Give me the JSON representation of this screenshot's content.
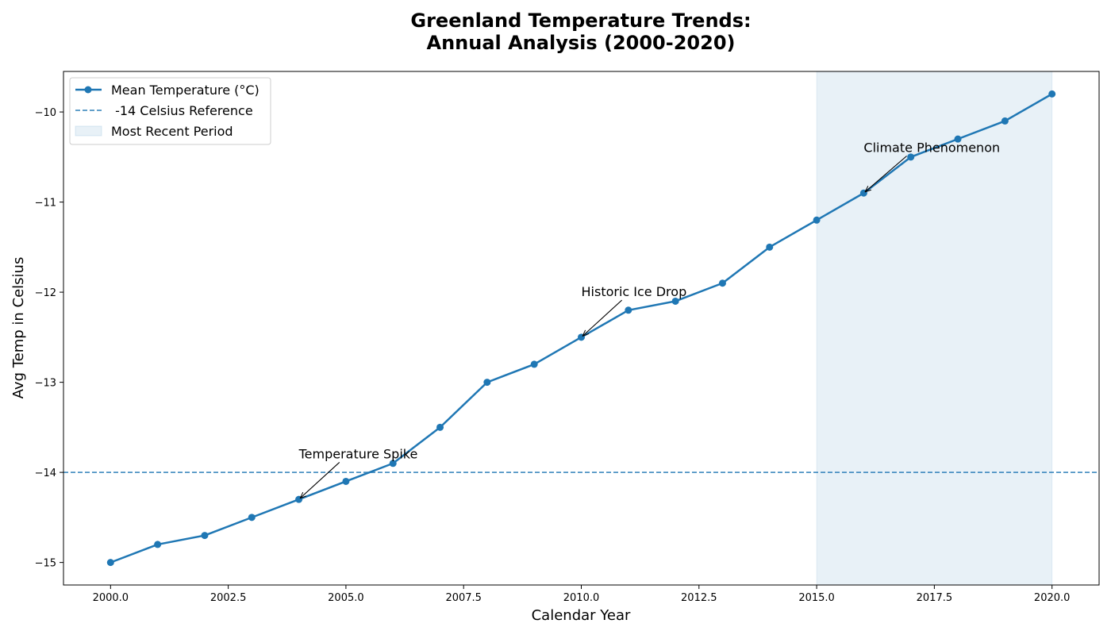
{
  "chart_data": {
    "type": "line",
    "title_line1": "Greenland Temperature Trends:",
    "title_line2": "Annual Analysis (2000-2020)",
    "xlabel": "Calendar Year",
    "ylabel": "Avg Temp in Celsius",
    "xlim": [
      1999.0,
      2021.0
    ],
    "ylim": [
      -15.25,
      -9.55
    ],
    "x_ticks": [
      2000.0,
      2002.5,
      2005.0,
      2007.5,
      2010.0,
      2012.5,
      2015.0,
      2017.5,
      2020.0
    ],
    "x_tick_labels": [
      "2000.0",
      "2002.5",
      "2005.0",
      "2007.5",
      "2010.0",
      "2012.5",
      "2015.0",
      "2017.5",
      "2020.0"
    ],
    "y_ticks": [
      -15,
      -14,
      -13,
      -12,
      -11,
      -10
    ],
    "y_tick_labels": [
      "−15",
      "−14",
      "−13",
      "−12",
      "−11",
      "−10"
    ],
    "grid": false,
    "series": [
      {
        "name": "Mean Temperature (°C)",
        "color": "#1f77b4",
        "x": [
          2000,
          2001,
          2002,
          2003,
          2004,
          2005,
          2006,
          2007,
          2008,
          2009,
          2010,
          2011,
          2012,
          2013,
          2014,
          2015,
          2016,
          2017,
          2018,
          2019,
          2020
        ],
        "values": [
          -15.0,
          -14.8,
          -14.7,
          -14.5,
          -14.3,
          -14.1,
          -13.9,
          -13.5,
          -13.0,
          -12.8,
          -12.5,
          -12.2,
          -12.1,
          -11.9,
          -11.5,
          -11.2,
          -10.9,
          -10.5,
          -10.3,
          -10.1,
          -9.8
        ]
      }
    ],
    "reference_line": {
      "name": " -14 Celsius Reference",
      "y": -14,
      "color": "#1f77b4"
    },
    "shaded_region": {
      "name": "Most Recent Period",
      "x_start": 2015,
      "x_end": 2020,
      "color": "#1f77b4"
    },
    "annotations": [
      {
        "text": "Temperature Spike",
        "point_x": 2004,
        "point_y": -14.3,
        "text_x": 2004,
        "text_y": -13.8
      },
      {
        "text": "Historic Ice Drop",
        "point_x": 2010,
        "point_y": -12.5,
        "text_x": 2010,
        "text_y": -12.0
      },
      {
        "text": "Climate Phenomenon",
        "point_x": 2016,
        "point_y": -10.9,
        "text_x": 2016,
        "text_y": -10.4
      }
    ],
    "legend_position": "upper-left"
  }
}
